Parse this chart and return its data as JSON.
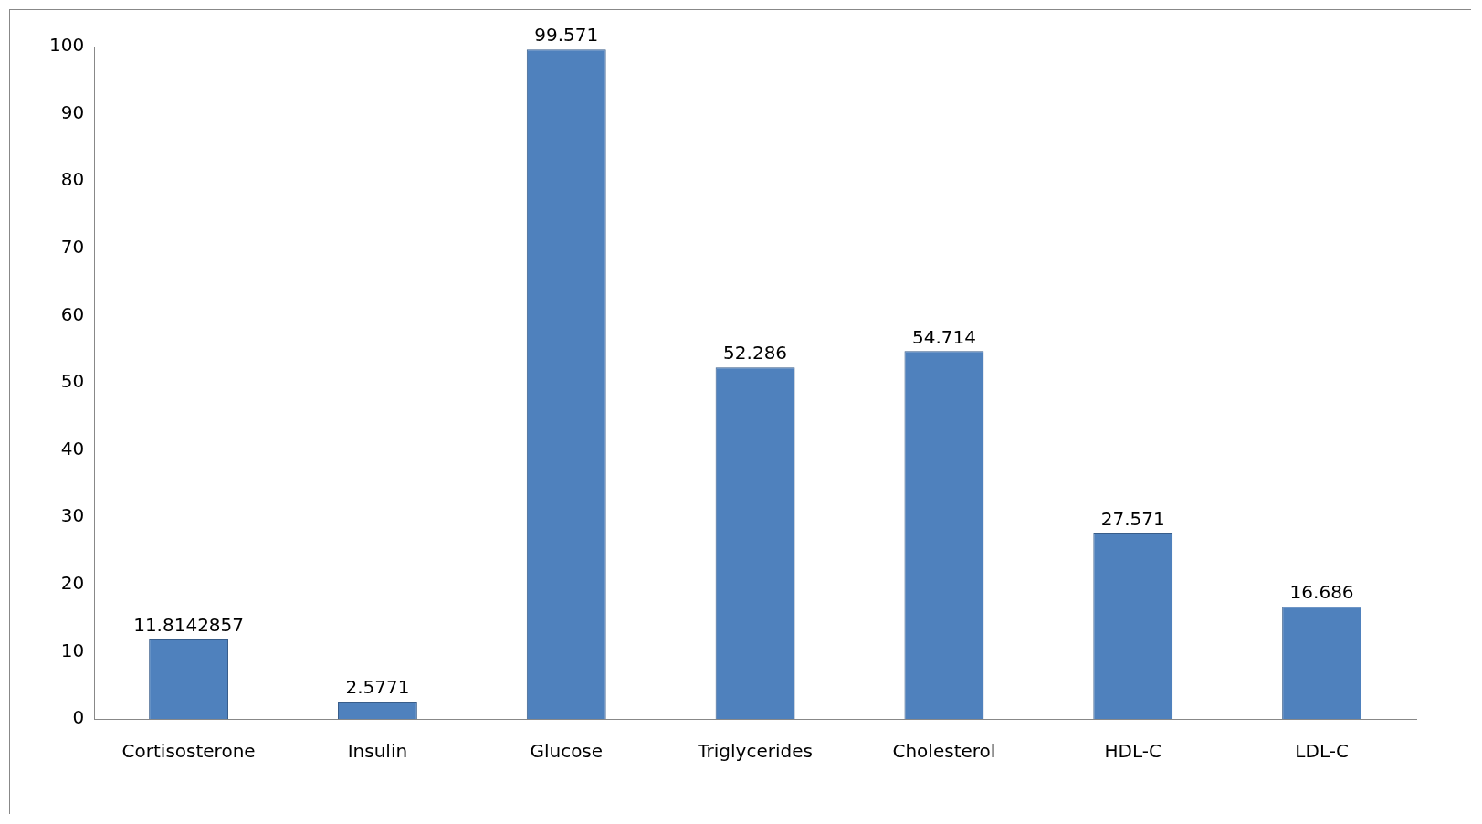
{
  "chart_data": {
    "type": "bar",
    "categories": [
      "Cortisosterone",
      "Insulin",
      "Glucose",
      "Triglycerides",
      "Cholesterol",
      "HDL-C",
      "LDL-C"
    ],
    "values": [
      11.8142857,
      2.5771,
      99.571,
      52.286,
      54.714,
      27.571,
      16.686
    ],
    "color": "#4f81bd",
    "ylim": [
      0,
      100
    ],
    "yticks": [
      0,
      10,
      20,
      30,
      40,
      50,
      60,
      70,
      80,
      90,
      100
    ],
    "data_labels": true,
    "grid": false,
    "legend": false
  }
}
